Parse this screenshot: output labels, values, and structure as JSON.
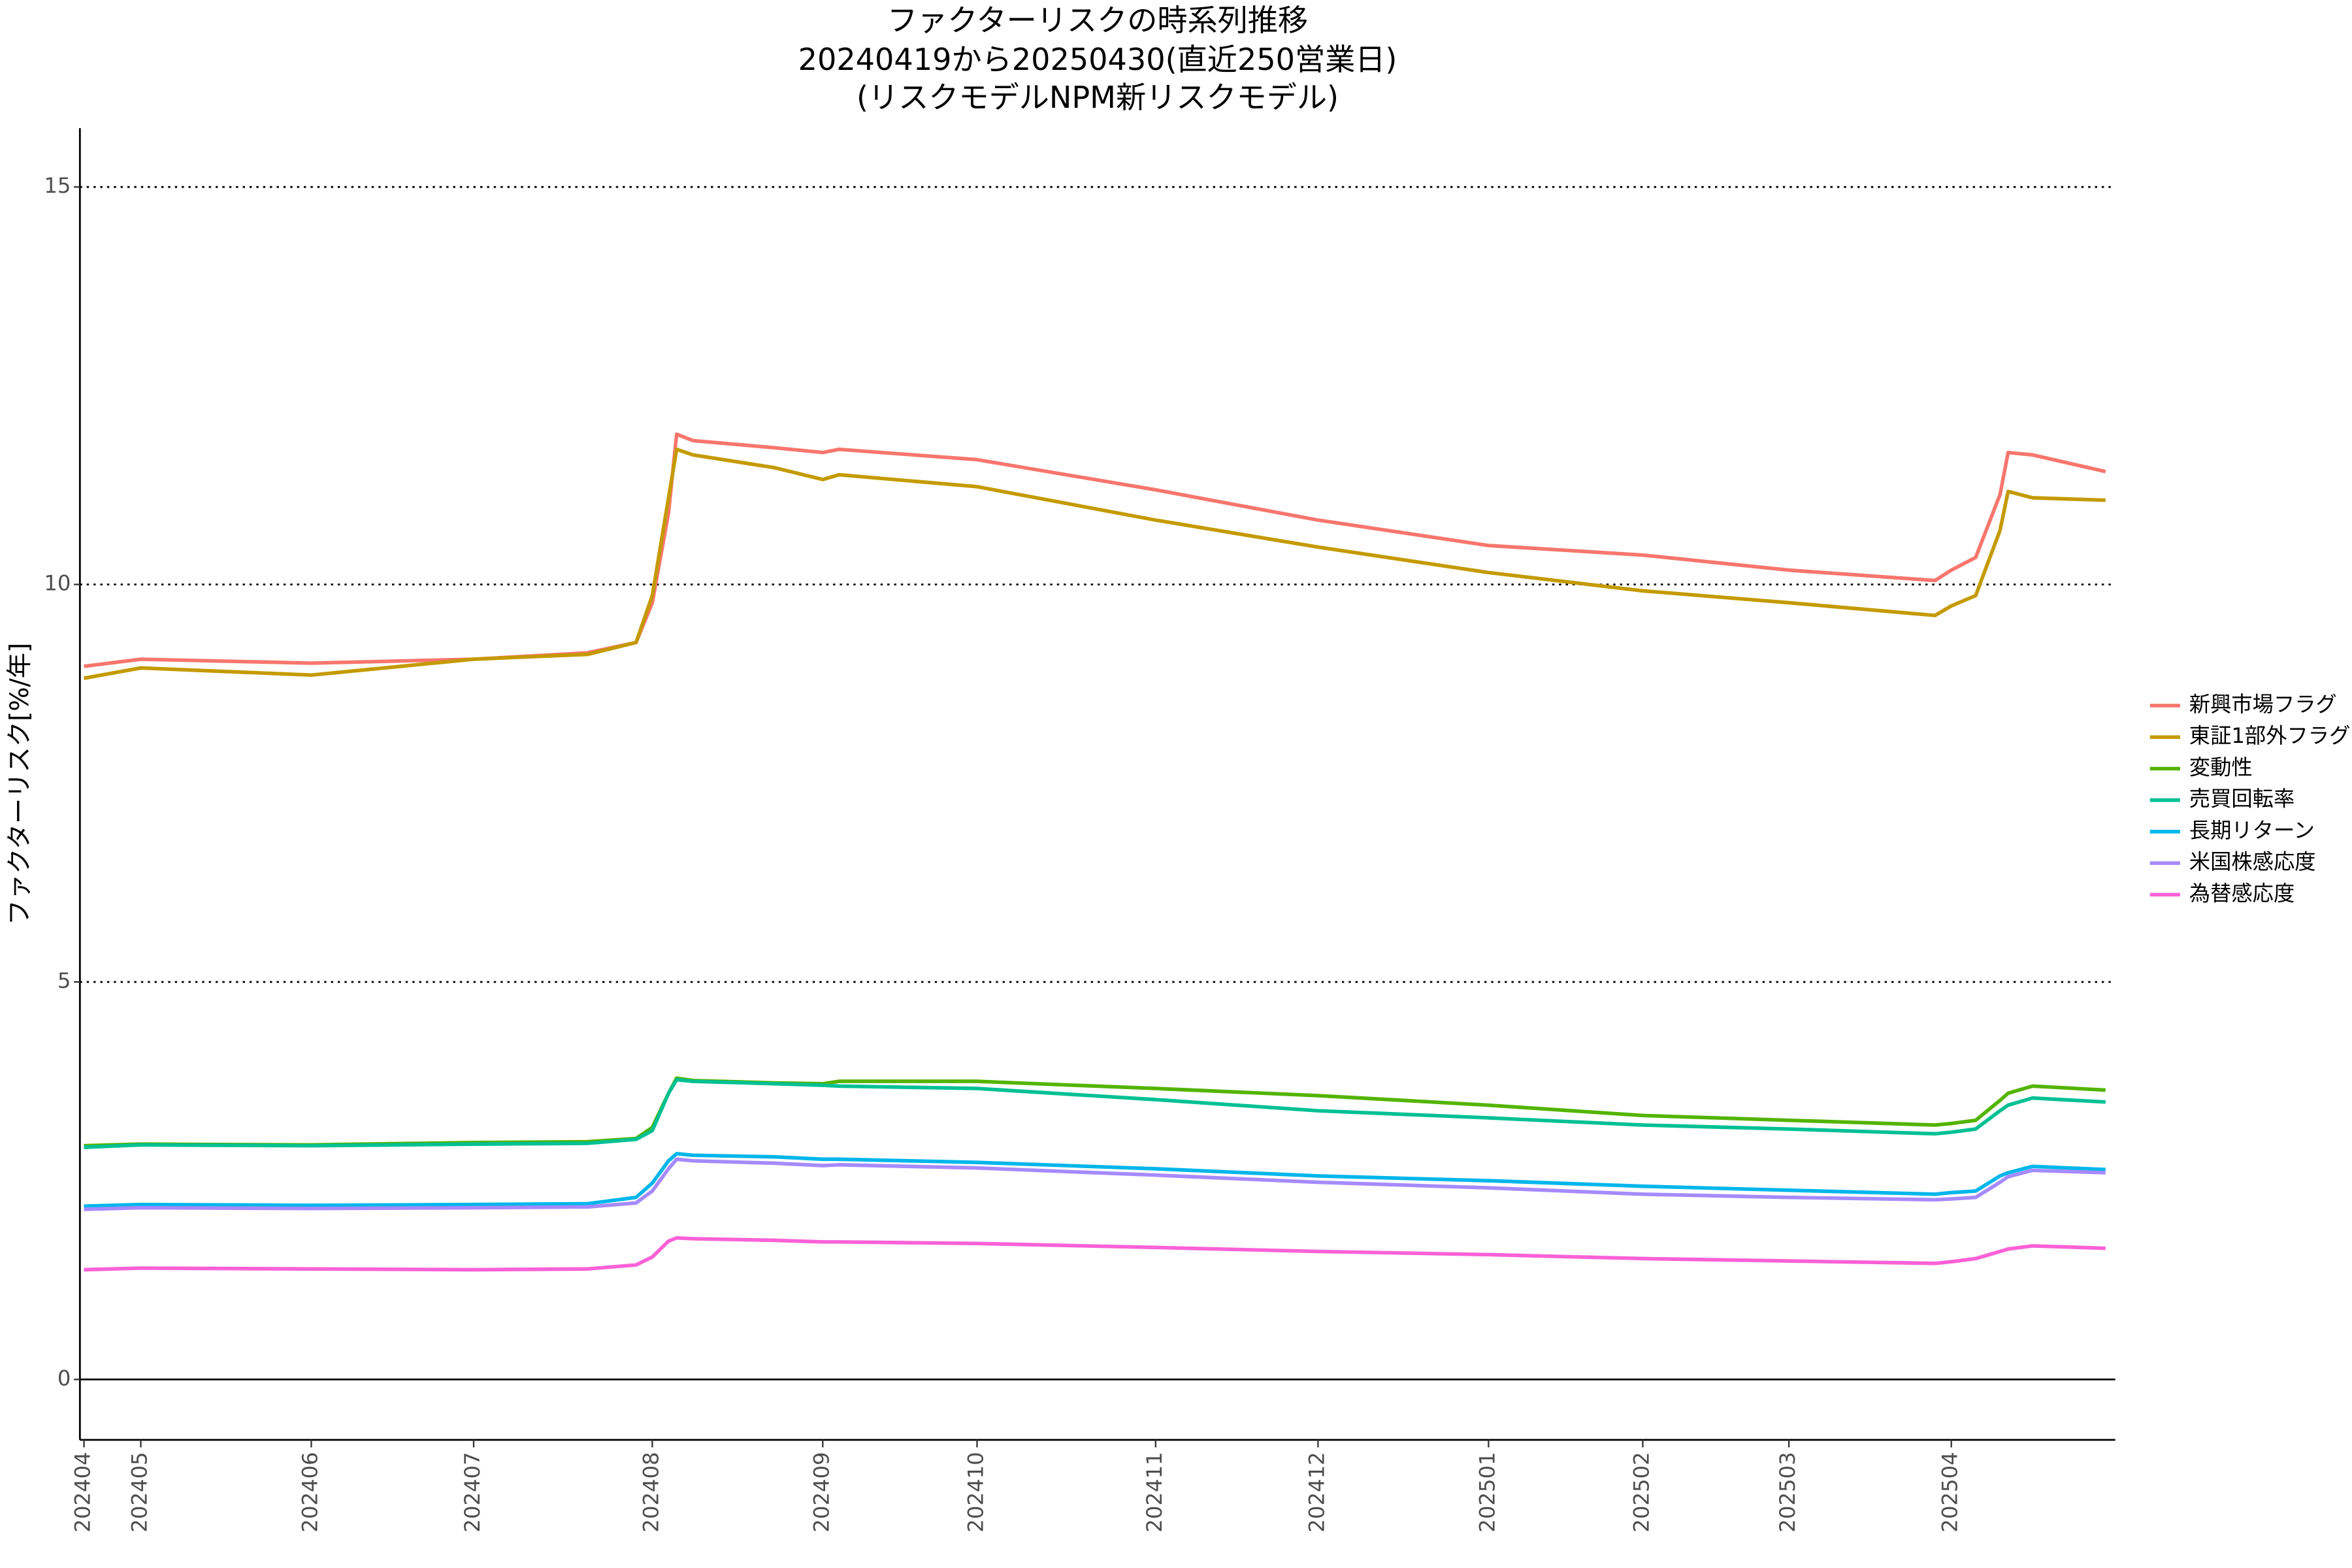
{
  "chart_data": {
    "type": "line",
    "title": [
      "ファクターリスクの時系列推移",
      "20240419から20250430(直近250営業日)",
      "(リスクモデルNPM新リスクモデル)"
    ],
    "y_label": "ファクターリスク[%/年]",
    "x": [
      0,
      7,
      28,
      48,
      62,
      68,
      70,
      72,
      73,
      75,
      85,
      91,
      93,
      110,
      132,
      152,
      173,
      192,
      210,
      228,
      230,
      233,
      236,
      237,
      240,
      249
    ],
    "xlim": [
      -0.5,
      250.2
    ],
    "xticks": [
      {
        "value": 0,
        "label": "202404"
      },
      {
        "value": 7,
        "label": "202405"
      },
      {
        "value": 28,
        "label": "202406"
      },
      {
        "value": 48,
        "label": "202407"
      },
      {
        "value": 70,
        "label": "202408"
      },
      {
        "value": 91,
        "label": "202409"
      },
      {
        "value": 110,
        "label": "202410"
      },
      {
        "value": 132,
        "label": "202411"
      },
      {
        "value": 152,
        "label": "202412"
      },
      {
        "value": 173,
        "label": "202501"
      },
      {
        "value": 192,
        "label": "202502"
      },
      {
        "value": 210,
        "label": "202503"
      },
      {
        "value": 230,
        "label": "202504"
      }
    ],
    "ylim": [
      -0.76,
      15.74
    ],
    "yticks": [
      0,
      5,
      10,
      15
    ],
    "grid": true,
    "legend": "right",
    "series": [
      {
        "name": "新興市場フラグ",
        "color": "#F8766D",
        "values": [
          8.97,
          9.06,
          9.01,
          9.06,
          9.14,
          9.27,
          9.77,
          10.9,
          11.89,
          11.81,
          11.72,
          11.66,
          11.7,
          11.57,
          11.19,
          10.81,
          10.49,
          10.37,
          10.18,
          10.05,
          10.18,
          10.34,
          11.13,
          11.66,
          11.63,
          11.42
        ]
      },
      {
        "name": "東証1部外フラグ",
        "color": "#C49A00",
        "values": [
          8.82,
          8.95,
          8.86,
          9.06,
          9.12,
          9.27,
          9.86,
          11.09,
          11.7,
          11.63,
          11.47,
          11.32,
          11.38,
          11.23,
          10.81,
          10.47,
          10.15,
          9.92,
          9.77,
          9.61,
          9.73,
          9.86,
          10.68,
          11.17,
          11.09,
          11.06
        ]
      },
      {
        "name": "変動性",
        "color": "#53B400",
        "values": [
          2.94,
          2.96,
          2.95,
          2.98,
          2.99,
          3.03,
          3.17,
          3.6,
          3.79,
          3.76,
          3.73,
          3.72,
          3.75,
          3.75,
          3.66,
          3.57,
          3.45,
          3.32,
          3.26,
          3.2,
          3.22,
          3.26,
          3.51,
          3.6,
          3.69,
          3.64
        ]
      },
      {
        "name": "売買回転率",
        "color": "#00C094",
        "values": [
          2.92,
          2.95,
          2.94,
          2.96,
          2.97,
          3.02,
          3.13,
          3.6,
          3.77,
          3.75,
          3.72,
          3.7,
          3.69,
          3.66,
          3.52,
          3.38,
          3.29,
          3.2,
          3.15,
          3.09,
          3.11,
          3.15,
          3.38,
          3.45,
          3.54,
          3.49
        ]
      },
      {
        "name": "長期リターン",
        "color": "#00B6EB",
        "values": [
          2.18,
          2.2,
          2.19,
          2.2,
          2.21,
          2.29,
          2.47,
          2.75,
          2.84,
          2.82,
          2.8,
          2.77,
          2.77,
          2.73,
          2.65,
          2.56,
          2.5,
          2.43,
          2.38,
          2.33,
          2.35,
          2.37,
          2.56,
          2.6,
          2.68,
          2.64
        ]
      },
      {
        "name": "米国株感応度",
        "color": "#A58AFF",
        "values": [
          2.14,
          2.16,
          2.15,
          2.16,
          2.17,
          2.22,
          2.37,
          2.65,
          2.77,
          2.75,
          2.72,
          2.69,
          2.7,
          2.66,
          2.57,
          2.48,
          2.41,
          2.33,
          2.29,
          2.26,
          2.27,
          2.29,
          2.48,
          2.55,
          2.63,
          2.6
        ]
      },
      {
        "name": "為替感応度",
        "color": "#FB61D7",
        "values": [
          1.38,
          1.4,
          1.39,
          1.38,
          1.39,
          1.44,
          1.54,
          1.74,
          1.78,
          1.77,
          1.75,
          1.73,
          1.73,
          1.71,
          1.66,
          1.61,
          1.57,
          1.52,
          1.49,
          1.46,
          1.48,
          1.52,
          1.61,
          1.64,
          1.68,
          1.65
        ]
      }
    ]
  }
}
